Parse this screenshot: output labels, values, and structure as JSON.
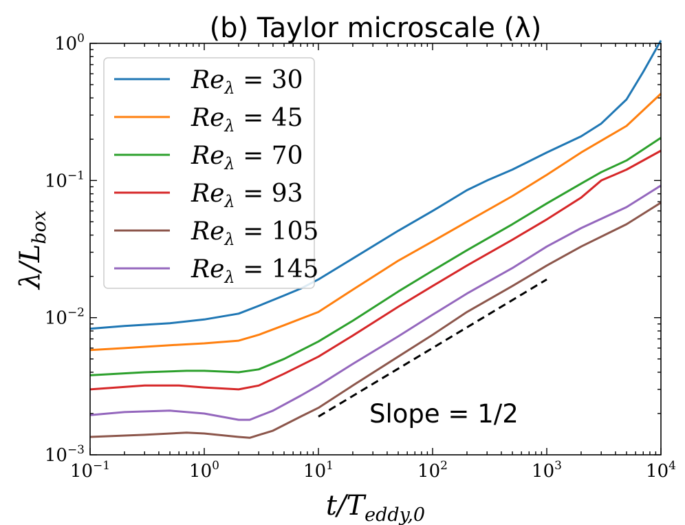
{
  "chart_data": {
    "type": "line",
    "title": "(b) Taylor microscale (λ)",
    "xlabel": {
      "main": "t/T",
      "sub": "eddy,0"
    },
    "ylabel": {
      "main": "λ/L",
      "sub": "box"
    },
    "xscale": "log",
    "yscale": "log",
    "xlim": [
      0.1,
      10000
    ],
    "ylim": [
      0.001,
      1
    ],
    "x_ticks": [
      {
        "value": 0.1,
        "base": "10",
        "exp": "−1"
      },
      {
        "value": 1,
        "base": "10",
        "exp": "0"
      },
      {
        "value": 10,
        "base": "10",
        "exp": "1"
      },
      {
        "value": 100,
        "base": "10",
        "exp": "2"
      },
      {
        "value": 1000,
        "base": "10",
        "exp": "3"
      },
      {
        "value": 10000,
        "base": "10",
        "exp": "4"
      }
    ],
    "y_ticks": [
      {
        "value": 0.001,
        "base": "10",
        "exp": "−3"
      },
      {
        "value": 0.01,
        "base": "10",
        "exp": "−2"
      },
      {
        "value": 0.1,
        "base": "10",
        "exp": "−1"
      },
      {
        "value": 1,
        "base": "10",
        "exp": "0"
      }
    ],
    "legend": {
      "location": "upper-left",
      "symbol": "Re",
      "subscript": "λ",
      "operator": "="
    },
    "series": [
      {
        "name": "30",
        "color": "#1f77b4",
        "points": [
          [
            0.1,
            0.0083
          ],
          [
            0.2,
            0.0087
          ],
          [
            0.5,
            0.0091
          ],
          [
            1,
            0.0097
          ],
          [
            2,
            0.0107
          ],
          [
            3,
            0.0122
          ],
          [
            5,
            0.0145
          ],
          [
            7,
            0.0163
          ],
          [
            10,
            0.019
          ],
          [
            20,
            0.027
          ],
          [
            50,
            0.043
          ],
          [
            100,
            0.06
          ],
          [
            200,
            0.085
          ],
          [
            300,
            0.1
          ],
          [
            500,
            0.12
          ],
          [
            1000,
            0.16
          ],
          [
            2000,
            0.21
          ],
          [
            3000,
            0.26
          ],
          [
            5000,
            0.39
          ],
          [
            7000,
            0.62
          ],
          [
            10000,
            1.05
          ]
        ]
      },
      {
        "name": "45",
        "color": "#ff7f0e",
        "points": [
          [
            0.1,
            0.0058
          ],
          [
            0.2,
            0.006
          ],
          [
            0.5,
            0.0063
          ],
          [
            1,
            0.0065
          ],
          [
            2,
            0.0068
          ],
          [
            3,
            0.0075
          ],
          [
            5,
            0.0088
          ],
          [
            10,
            0.011
          ],
          [
            20,
            0.016
          ],
          [
            50,
            0.026
          ],
          [
            100,
            0.036
          ],
          [
            200,
            0.05
          ],
          [
            500,
            0.077
          ],
          [
            1000,
            0.11
          ],
          [
            2000,
            0.16
          ],
          [
            5000,
            0.25
          ],
          [
            10000,
            0.43
          ]
        ]
      },
      {
        "name": "70",
        "color": "#2ca02c",
        "points": [
          [
            0.1,
            0.0038
          ],
          [
            0.3,
            0.004
          ],
          [
            0.7,
            0.0041
          ],
          [
            1,
            0.0041
          ],
          [
            2,
            0.004
          ],
          [
            3,
            0.0042
          ],
          [
            5,
            0.005
          ],
          [
            10,
            0.0067
          ],
          [
            20,
            0.0095
          ],
          [
            50,
            0.0155
          ],
          [
            100,
            0.022
          ],
          [
            200,
            0.031
          ],
          [
            500,
            0.048
          ],
          [
            1000,
            0.068
          ],
          [
            2000,
            0.095
          ],
          [
            3000,
            0.115
          ],
          [
            5000,
            0.14
          ],
          [
            10000,
            0.205
          ]
        ]
      },
      {
        "name": "93",
        "color": "#d62728",
        "points": [
          [
            0.1,
            0.003
          ],
          [
            0.3,
            0.0032
          ],
          [
            0.6,
            0.0032
          ],
          [
            1,
            0.0031
          ],
          [
            2,
            0.003
          ],
          [
            3,
            0.0032
          ],
          [
            5,
            0.0039
          ],
          [
            10,
            0.0052
          ],
          [
            20,
            0.0074
          ],
          [
            50,
            0.012
          ],
          [
            100,
            0.017
          ],
          [
            200,
            0.024
          ],
          [
            500,
            0.037
          ],
          [
            1000,
            0.052
          ],
          [
            2000,
            0.075
          ],
          [
            3000,
            0.1
          ],
          [
            5000,
            0.12
          ],
          [
            10000,
            0.165
          ]
        ]
      },
      {
        "name": "105",
        "color": "#8c564b",
        "points": [
          [
            0.1,
            0.00135
          ],
          [
            0.3,
            0.0014
          ],
          [
            0.7,
            0.00145
          ],
          [
            1,
            0.00143
          ],
          [
            2,
            0.00135
          ],
          [
            2.5,
            0.00133
          ],
          [
            4,
            0.0015
          ],
          [
            7,
            0.0019
          ],
          [
            10,
            0.0022
          ],
          [
            20,
            0.0032
          ],
          [
            50,
            0.0052
          ],
          [
            100,
            0.0075
          ],
          [
            200,
            0.011
          ],
          [
            500,
            0.017
          ],
          [
            1000,
            0.024
          ],
          [
            2000,
            0.033
          ],
          [
            5000,
            0.048
          ],
          [
            10000,
            0.069
          ]
        ]
      },
      {
        "name": "145",
        "color": "#9467bd",
        "points": [
          [
            0.1,
            0.00195
          ],
          [
            0.2,
            0.00205
          ],
          [
            0.5,
            0.0021
          ],
          [
            1,
            0.002
          ],
          [
            2,
            0.0018
          ],
          [
            2.5,
            0.0018
          ],
          [
            4,
            0.0021
          ],
          [
            7,
            0.0027
          ],
          [
            10,
            0.0032
          ],
          [
            20,
            0.0046
          ],
          [
            50,
            0.0073
          ],
          [
            100,
            0.0105
          ],
          [
            200,
            0.015
          ],
          [
            500,
            0.023
          ],
          [
            1000,
            0.033
          ],
          [
            2000,
            0.045
          ],
          [
            5000,
            0.064
          ],
          [
            10000,
            0.092
          ]
        ]
      }
    ],
    "reference_line": {
      "style": "dashed",
      "color": "#000000",
      "points": [
        [
          10,
          0.0019
        ],
        [
          1000,
          0.019
        ]
      ]
    },
    "annotation": {
      "text": "Slope = 1/2",
      "x": 50,
      "y": 0.002
    }
  }
}
